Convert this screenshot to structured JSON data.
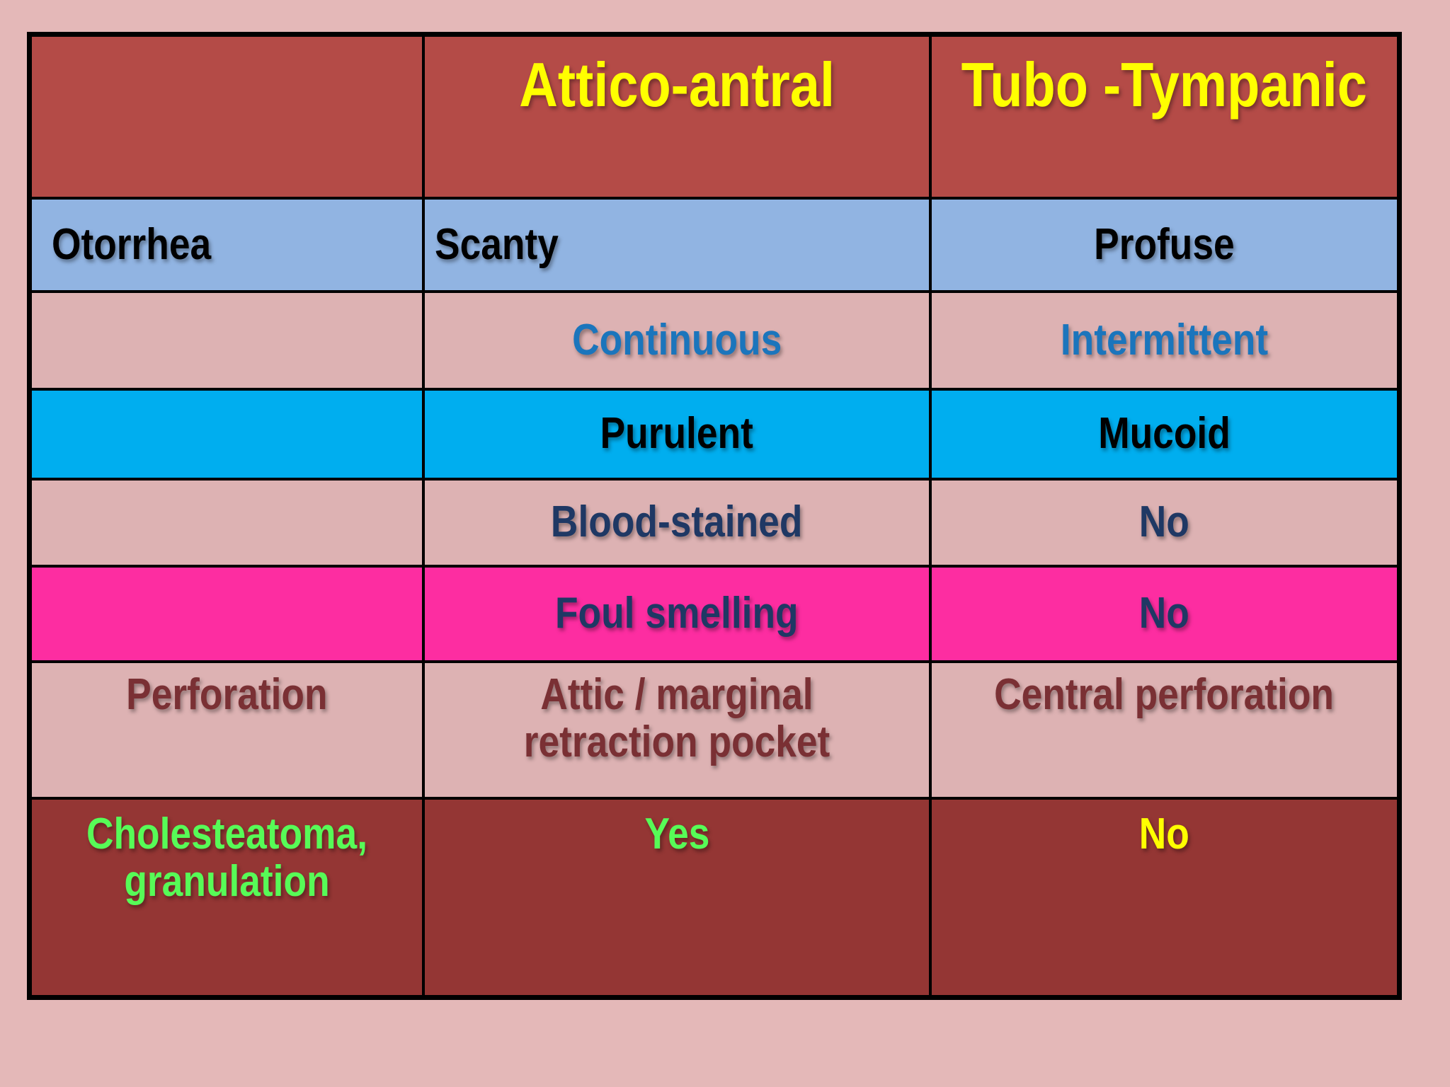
{
  "chart_data": {
    "type": "table",
    "title": "",
    "columns": [
      "",
      "Attico-antral",
      "Tubo -Tympanic"
    ],
    "rows": [
      [
        "Otorrhea",
        "Scanty",
        "Profuse"
      ],
      [
        "",
        "Continuous",
        "Intermittent"
      ],
      [
        "",
        "Purulent",
        "Mucoid"
      ],
      [
        "",
        "Blood-stained",
        "No"
      ],
      [
        "",
        "Foul smelling",
        "No"
      ],
      [
        "Perforation",
        "Attic / marginal retraction pocket",
        "Central perforation"
      ],
      [
        "Cholesteatoma, granulation",
        "Yes",
        "No"
      ]
    ],
    "layout": {
      "grid": "on",
      "header_row": true,
      "columns_count": 3,
      "rows_count": 8
    }
  },
  "colors": {
    "page_background": "#e4b8b8",
    "border": "#000000",
    "header_background": "#b44b47",
    "row_blue_background": "#91b4e2",
    "row_pink_background": "#ddb2b3",
    "row_cyan_background": "#00aeef",
    "row_magenta_background": "#fd2da1",
    "row_maroon_background": "#943634",
    "text_yellow": "#ffff00",
    "text_black": "#000000",
    "text_blue": "#1b75bc",
    "text_navy": "#1f3864",
    "text_maroon": "#7a3034",
    "text_green": "#57fb57"
  }
}
